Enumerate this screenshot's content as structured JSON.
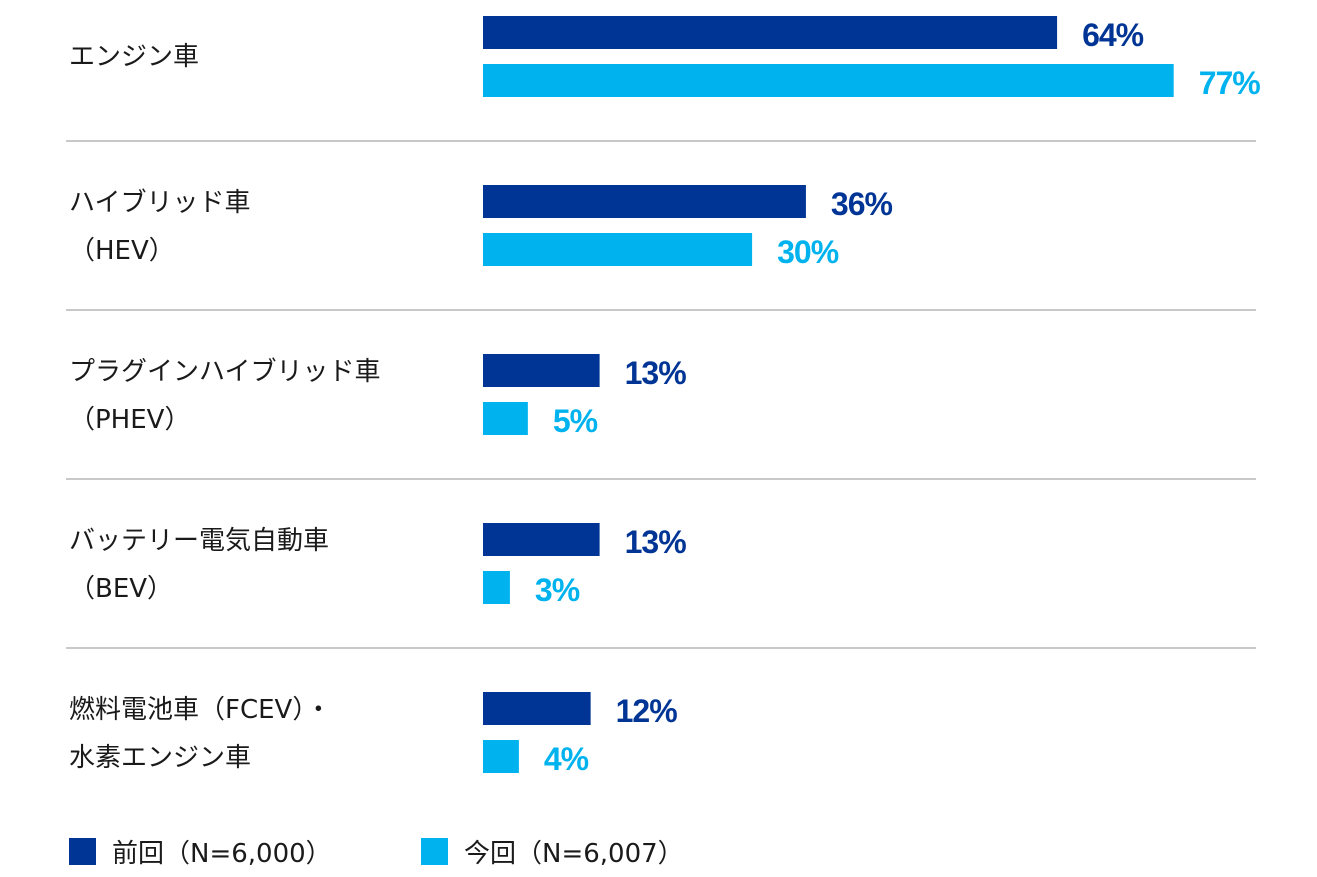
{
  "chart_data": {
    "type": "bar",
    "orientation": "horizontal",
    "unit": "%",
    "categories": [
      [
        "エンジン車"
      ],
      [
        "ハイブリッド車",
        "（HEV）"
      ],
      [
        "プラグインハイブリッド車",
        "（PHEV）"
      ],
      [
        "バッテリー電気自動車",
        "（BEV）"
      ],
      [
        "燃料電池車（FCEV）・",
        "水素エンジン車"
      ]
    ],
    "series": [
      {
        "name": "前回（N=6,000）",
        "color": "#003595",
        "values": [
          64,
          36,
          13,
          13,
          12
        ]
      },
      {
        "name": "今回（N=6,007）",
        "color": "#00B3EF",
        "values": [
          77,
          30,
          5,
          3,
          4
        ]
      }
    ],
    "value_labels": {
      "前回": [
        "64%",
        "36%",
        "13%",
        "13%",
        "12%"
      ],
      "今回": [
        "77%",
        "30%",
        "5%",
        "3%",
        "4%"
      ]
    },
    "xlim": [
      0,
      100
    ],
    "legend": {
      "position": "bottom-left",
      "items": [
        "前回（N=6,000）",
        "今回（N=6,007）"
      ]
    },
    "divider_color": "#c8c8c8"
  }
}
